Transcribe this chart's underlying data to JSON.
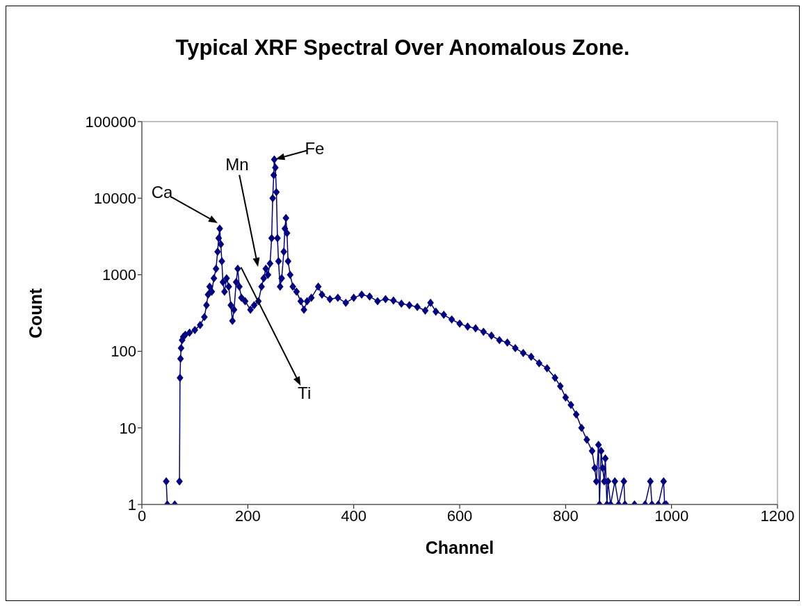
{
  "chart_data": {
    "type": "line",
    "title": "Typical XRF Spectral Over Anomalous Zone.",
    "xlabel": "Channel",
    "ylabel": "Count",
    "x": [
      46,
      48,
      62,
      66,
      71,
      72,
      73,
      74,
      76,
      78,
      82,
      90,
      100,
      110,
      118,
      122,
      125,
      128,
      132,
      136,
      140,
      143,
      145,
      147,
      149,
      151,
      153,
      156,
      160,
      164,
      168,
      171,
      174,
      178,
      181,
      184,
      188,
      195,
      205,
      212,
      220,
      226,
      230,
      234,
      238,
      242,
      245,
      247,
      249,
      250,
      252,
      254,
      256,
      258,
      261,
      264,
      268,
      270,
      272,
      274,
      276,
      280,
      285,
      292,
      300,
      306,
      312,
      320,
      333,
      340,
      355,
      370,
      385,
      400,
      415,
      430,
      445,
      460,
      475,
      490,
      505,
      520,
      535,
      545,
      555,
      570,
      585,
      600,
      615,
      630,
      645,
      660,
      675,
      690,
      705,
      720,
      735,
      750,
      765,
      780,
      790,
      800,
      810,
      820,
      830,
      840,
      850,
      855,
      858,
      862,
      864,
      867,
      870,
      873,
      875,
      878,
      880,
      885,
      893,
      900,
      910,
      912,
      930,
      950,
      960,
      963,
      975,
      985,
      987,
      990
    ],
    "series": [
      {
        "color": "#000080",
        "values": [
          2,
          1,
          1,
          null,
          2,
          45,
          80,
          110,
          140,
          155,
          165,
          175,
          190,
          220,
          280,
          400,
          550,
          700,
          600,
          900,
          1200,
          2000,
          3000,
          4000,
          2500,
          1500,
          800,
          600,
          900,
          700,
          400,
          250,
          350,
          800,
          1200,
          700,
          500,
          450,
          350,
          400,
          450,
          700,
          900,
          1200,
          1000,
          1400,
          3000,
          10000,
          20000,
          32000,
          25000,
          12000,
          3000,
          1500,
          700,
          900,
          2000,
          4000,
          5500,
          3500,
          1500,
          1000,
          700,
          600,
          450,
          350,
          450,
          500,
          700,
          550,
          480,
          500,
          430,
          500,
          550,
          520,
          450,
          480,
          460,
          420,
          400,
          380,
          340,
          430,
          330,
          300,
          260,
          230,
          210,
          200,
          180,
          160,
          140,
          130,
          110,
          95,
          85,
          70,
          60,
          45,
          35,
          25,
          20,
          15,
          10,
          7,
          5,
          3,
          2,
          6,
          1,
          5,
          3,
          2,
          4,
          1,
          2,
          1,
          2,
          1,
          2,
          1,
          1,
          1,
          2,
          1,
          1,
          2,
          1,
          1
        ]
      }
    ],
    "xlim": [
      0,
      1200
    ],
    "xticks": [
      0,
      200,
      400,
      600,
      800,
      1000,
      1200
    ],
    "ylim": [
      1,
      100000
    ],
    "yticks": [
      1,
      10,
      100,
      1000,
      10000,
      100000
    ],
    "log": true,
    "grid": false,
    "legend": false,
    "marker": "diamond",
    "line_style": "solid",
    "annotations": [
      "Ca",
      "Mn",
      {
        "text": "Fe",
        "x": 250,
        "y": 32000
      },
      {
        "text": "Ti",
        "x": 186,
        "y": 1300
      }
    ]
  }
}
